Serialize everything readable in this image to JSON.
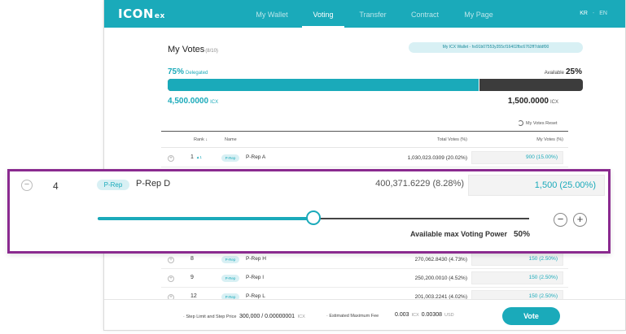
{
  "header": {
    "logo": "ICON",
    "logo_sub": "ex",
    "nav": [
      {
        "label": "My Wallet",
        "active": false
      },
      {
        "label": "Voting",
        "active": true
      },
      {
        "label": "Transfer",
        "active": false
      },
      {
        "label": "Contract",
        "active": false
      },
      {
        "label": "My Page",
        "active": false
      }
    ],
    "lang": {
      "current": "KR",
      "other": "EN",
      "separator": "-"
    }
  },
  "votes": {
    "title": "My Votes",
    "count": "(8/10)",
    "wallet_chip": "My ICX Wallet - hx91b07553y355cf16402fbc6762ff7dddf00",
    "delegated_pct": "75%",
    "delegated_label": "Delegated",
    "available_label": "Available",
    "available_pct": "25%",
    "delegated_fraction": 0.75,
    "delegated_amount": "4,500.0000",
    "available_amount": "1,500.0000",
    "unit": "ICX",
    "reset_label": "My Votes Reset"
  },
  "table": {
    "headers": {
      "rank": "Rank",
      "name": "Name",
      "total": "Total Votes (%)",
      "my": "My Votes (%)"
    },
    "rows_top": [
      {
        "rank": "1",
        "delta": "▲1",
        "tag": "P-Rep",
        "name": "P-Rep A",
        "total": "1,030,023.0309 (20.02%)",
        "my": "900 (15.00%)"
      }
    ],
    "rows_bottom": [
      {
        "rank": "8",
        "tag": "P-Rep",
        "name": "P-Rep H",
        "total": "270,062.8430 (4.73%)",
        "my": "150  (2.50%)"
      },
      {
        "rank": "9",
        "tag": "P-Rep",
        "name": "P-Rep I",
        "total": "250,200.0010 (4.52%)",
        "my": "150  (2.50%)"
      },
      {
        "rank": "12",
        "tag": "P-Rep",
        "name": "P-Rep L",
        "total": "201,003.2241 (4.02%)",
        "my": "150  (2.50%)"
      }
    ]
  },
  "expanded": {
    "rank": "4",
    "tag": "P-Rep",
    "name": "P-Rep D",
    "total": "400,371.6229 (8.28%)",
    "my_votes": "1,500 (25.00%)",
    "slider_fraction": 0.5,
    "available_label": "Available max Voting Power",
    "available_pct": "50%",
    "minus_label": "−",
    "plus_label": "+",
    "collapse_label": "−"
  },
  "footer": {
    "step_label": "· Step Limit and Step Price",
    "step_value": "300,000 / 0.00000001",
    "step_unit": "ICX",
    "fee_label": "· Estimated Maximum Fee",
    "fee_icx": "0.003",
    "fee_icx_unit": "ICX",
    "fee_usd": "0.00308",
    "fee_usd_unit": "USD",
    "vote_button": "Vote"
  },
  "colors": {
    "accent": "#1aaaba",
    "highlight_border": "#8a2a8f",
    "bar_dark": "#3c3c3c"
  }
}
